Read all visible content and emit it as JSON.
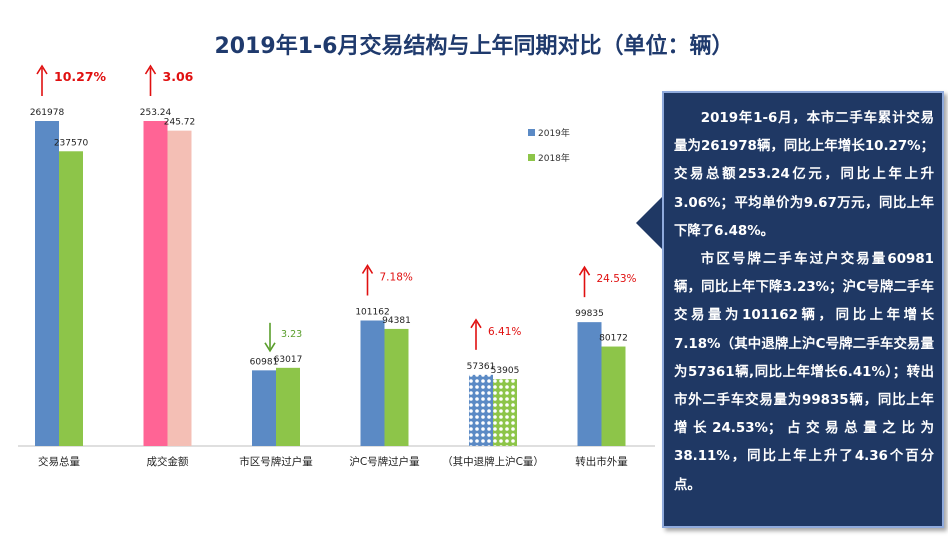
{
  "title": "2019年1-6月交易结构与上年同期对比（单位：辆）",
  "chart_data": {
    "type": "bar",
    "categories": [
      "交易总量",
      "成交金额",
      "市区号牌过户量",
      "沪C号牌过户量",
      "（其中退牌上沪C量）",
      "转出市外量"
    ],
    "series": [
      {
        "name": "2019年",
        "values": [
          261978,
          253.24,
          60981,
          101162,
          57361,
          99835
        ],
        "labels": [
          "261978",
          "253.24",
          "60981",
          "101162",
          "57361",
          "99835"
        ]
      },
      {
        "name": "2018年",
        "values": [
          237570,
          245.72,
          63017,
          94381,
          53905,
          80172
        ],
        "labels": [
          "237570",
          "245.72",
          "63017",
          "94381",
          "53905",
          "80172"
        ]
      }
    ],
    "changes": [
      {
        "label": "10.27%",
        "direction": "up"
      },
      {
        "label": "3.06",
        "direction": "up"
      },
      {
        "label": "3.23",
        "direction": "down"
      },
      {
        "label": "7.18%",
        "direction": "up"
      },
      {
        "label": "6.41%",
        "direction": "up"
      },
      {
        "label": "24.53%",
        "direction": "up"
      }
    ],
    "legend_position": "right",
    "colors": {
      "2019": "#5b8ac5",
      "2018": "#8dc549",
      "amount_2019": "#ff6495",
      "amount_2018": "#f4bfb5",
      "up_arrow": "#e01010",
      "down_arrow": "#5a9e2c"
    }
  },
  "info": {
    "paragraphs": [
      "2019年1-6月，本市二手车累计交易量为261978辆，同比上年增长10.27%；交易总额253.24亿元，同比上年上升3.06%；平均单价为9.67万元，同比上年下降了6.48%。",
      "市区号牌二手车过户交易量60981辆，同比上年下降3.23%；沪C号牌二手车交易量为101162辆，同比上年增长7.18%（其中退牌上沪C号牌二手车交易量为57361辆,同比上年增长6.41%）；转出市外二手车交易量为99835辆，同比上年增长24.53%；占交易总量之比为38.11%，同比上年上升了4.36个百分点。"
    ]
  }
}
